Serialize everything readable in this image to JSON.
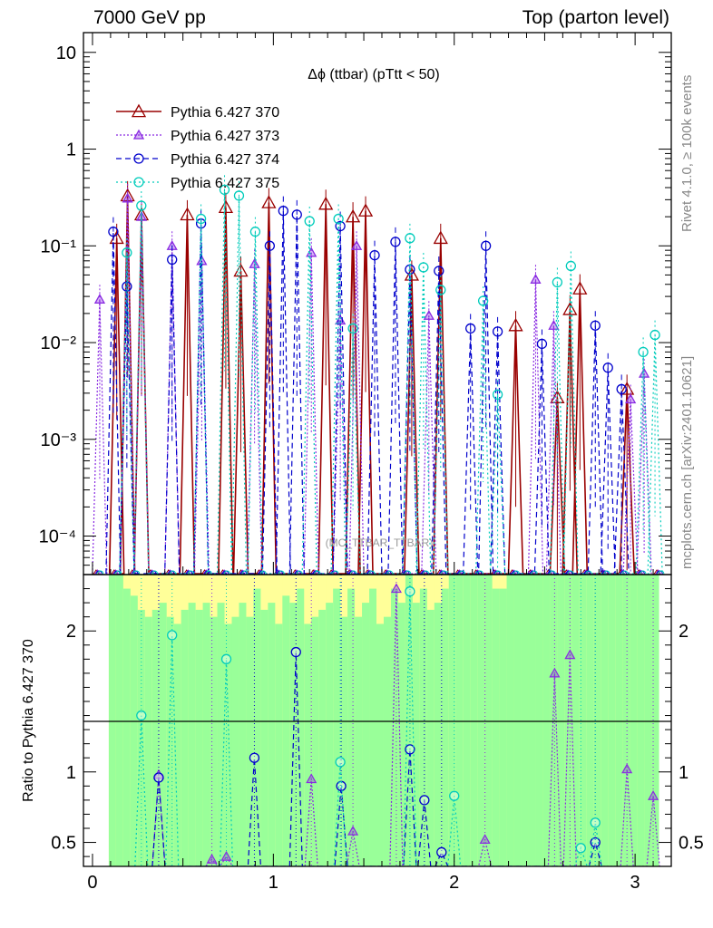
{
  "header": {
    "left": "7000 GeV pp",
    "right": "Top (parton level)"
  },
  "side_labels": {
    "rivet": "Rivet 4.1.0, ≥ 100k events",
    "mcplots": "mcplots.cern.ch [arXiv:2401.10621]"
  },
  "colors": {
    "s370": "#990000",
    "s373": "#8a2be2",
    "s374": "#0000cc",
    "s375": "#00ccbb",
    "band_green": "#99ff99",
    "band_yellow": "#ffff99"
  },
  "chart_data": {
    "type": "line",
    "title": "Δϕ (ttbar) (pTtt < 50)",
    "watermark": "(MC_TTBAR_TTBAR)",
    "xlabel": "",
    "ylabel_ratio": "Ratio to Pythia 6.427 370",
    "xlim": [
      -0.05,
      3.2
    ],
    "ylim": [
      4e-05,
      16
    ],
    "ratio_ylim": [
      0.33,
      2.4
    ],
    "x_ticks": [
      "0",
      "1",
      "2",
      "3"
    ],
    "y_ticks": [
      "10",
      "1",
      "10⁻¹",
      "10⁻²",
      "10⁻³",
      "10⁻⁴"
    ],
    "ratio_ticks": [
      "0.5",
      "1",
      "2"
    ],
    "legend": [
      "Pythia 6.427 370",
      "Pythia 6.427 373",
      "Pythia 6.427 374",
      "Pythia 6.427 375"
    ],
    "series": [
      {
        "name": "Pythia 6.427 370",
        "marker": "triangle",
        "x": [
          0.134,
          0.194,
          0.271,
          0.524,
          0.737,
          0.82,
          0.975,
          1.29,
          1.44,
          1.51,
          1.765,
          1.925,
          2.34,
          2.57,
          2.64,
          2.695,
          2.955
        ],
        "y": [
          0.12,
          0.33,
          0.21,
          0.21,
          0.25,
          0.055,
          0.28,
          0.27,
          0.2,
          0.23,
          0.05,
          0.12,
          0.015,
          0.0027,
          0.022,
          0.036,
          0.0033
        ]
      },
      {
        "name": "Pythia 6.427 373",
        "marker": "triangle-small",
        "x": [
          0.04,
          0.194,
          0.271,
          0.44,
          0.604,
          0.896,
          1.21,
          1.37,
          1.46,
          1.86,
          2.45,
          2.55,
          2.975,
          3.05
        ],
        "y": [
          0.028,
          0.31,
          0.2,
          0.1,
          0.07,
          0.065,
          0.085,
          0.017,
          0.1,
          0.019,
          0.045,
          0.015,
          0.0026,
          0.0048
        ]
      },
      {
        "name": "Pythia 6.427 374",
        "marker": "circle",
        "x": [
          0.115,
          0.19,
          0.44,
          0.6,
          0.98,
          1.055,
          1.13,
          1.37,
          1.56,
          1.675,
          1.755,
          1.915,
          2.09,
          2.175,
          2.24,
          2.485,
          2.78,
          2.85,
          2.925
        ],
        "y": [
          0.14,
          0.038,
          0.072,
          0.17,
          0.1,
          0.23,
          0.21,
          0.16,
          0.08,
          0.11,
          0.057,
          0.055,
          0.014,
          0.1,
          0.013,
          0.0097,
          0.015,
          0.0055,
          0.0033
        ]
      },
      {
        "name": "Pythia 6.427 375",
        "marker": "circle-open",
        "x": [
          0.19,
          0.27,
          0.6,
          0.73,
          0.81,
          0.9,
          1.2,
          1.36,
          1.44,
          1.755,
          1.83,
          1.925,
          2.16,
          2.24,
          2.57,
          2.645,
          3.045,
          3.11
        ],
        "y": [
          0.085,
          0.26,
          0.19,
          0.38,
          0.33,
          0.14,
          0.18,
          0.19,
          0.014,
          0.12,
          0.06,
          0.035,
          0.027,
          0.0029,
          0.042,
          0.062,
          0.008,
          0.012
        ]
      }
    ],
    "ratio_series": [
      {
        "name": "Pythia 6.427 373",
        "x": [
          0.366,
          0.66,
          0.74,
          1.21,
          1.44,
          1.68,
          2.17,
          2.555,
          2.64,
          2.955,
          3.1
        ],
        "y": [
          0.98,
          0.38,
          0.4,
          0.95,
          0.58,
          2.3,
          0.52,
          1.7,
          1.83,
          1.02,
          0.83
        ]
      },
      {
        "name": "Pythia 6.427 374",
        "x": [
          0.366,
          0.895,
          1.125,
          1.375,
          1.755,
          1.835,
          1.93,
          2.78
        ],
        "y": [
          0.96,
          1.1,
          1.85,
          0.9,
          1.16,
          0.8,
          0.43,
          0.5
        ]
      },
      {
        "name": "Pythia 6.427 375",
        "x": [
          0.27,
          0.44,
          0.74,
          1.37,
          1.755,
          2.0,
          2.7,
          2.78
        ],
        "y": [
          1.4,
          1.97,
          1.8,
          1.07,
          2.28,
          0.83,
          0.46,
          0.64
        ]
      }
    ],
    "band_edges": [
      0.09,
      0.13,
      0.17,
      0.21,
      0.25,
      0.29,
      0.33,
      0.37,
      0.41,
      0.45,
      0.49,
      0.53,
      0.57,
      0.61,
      0.65,
      0.69,
      0.73,
      0.77,
      0.81,
      0.85,
      0.89,
      0.93,
      0.97,
      1.01,
      1.05,
      1.09,
      1.13,
      1.17,
      1.21,
      1.25,
      1.29,
      1.33,
      1.37,
      1.41,
      1.45,
      1.49,
      1.53,
      1.57,
      1.61,
      1.65,
      1.69,
      1.73,
      1.77,
      1.81,
      1.85,
      1.89,
      1.93,
      1.97,
      2.01,
      2.05,
      2.09,
      2.13,
      2.17,
      2.21,
      2.25,
      2.29,
      2.33,
      2.37,
      2.41,
      2.45,
      2.49,
      2.53,
      2.57,
      2.61,
      2.65,
      2.69,
      2.73,
      2.77,
      2.81,
      2.85,
      2.89,
      2.93,
      2.97,
      3.01,
      3.05,
      3.09,
      3.13
    ],
    "band_green_top": [
      2.4,
      2.4,
      2.3,
      2.25,
      2.15,
      2.1,
      2.15,
      2.2,
      2.1,
      2.05,
      2.15,
      2.2,
      2.15,
      2.2,
      2.1,
      2.2,
      2.05,
      2.1,
      2.2,
      2.1,
      2.3,
      2.15,
      2.2,
      2.05,
      2.25,
      2.2,
      2.3,
      2.05,
      2.1,
      2.15,
      2.2,
      2.3,
      2.1,
      2.3,
      2.1,
      2.2,
      2.3,
      2.05,
      2.1,
      2.3,
      2.2,
      2.4,
      2.2,
      2.3,
      2.15,
      2.2,
      2.3,
      2.4,
      2.4,
      2.4,
      2.4,
      2.4,
      2.4,
      2.3,
      2.3,
      2.4,
      2.4,
      2.4,
      2.4,
      2.4,
      2.4,
      2.4,
      2.4,
      2.4,
      2.4,
      2.4,
      2.4,
      2.4,
      2.4,
      2.4,
      2.4,
      2.4,
      2.4,
      2.4,
      2.4,
      2.4
    ],
    "band_yellow_top": [
      2.4,
      2.4,
      2.4,
      2.4,
      2.4,
      2.4,
      2.4,
      2.4,
      2.4,
      2.4,
      2.4,
      2.4,
      2.4,
      2.4,
      2.4,
      2.4,
      2.4,
      2.4,
      2.4,
      2.4,
      2.4,
      2.4,
      2.4,
      2.4,
      2.4,
      2.4,
      2.4,
      2.4,
      2.4,
      2.4,
      2.4,
      2.4,
      2.4,
      2.4,
      2.4,
      2.4,
      2.4,
      2.4,
      2.4,
      2.4,
      2.4,
      2.4,
      2.4,
      2.4,
      2.4,
      2.4,
      2.4,
      2.4,
      2.4,
      2.4,
      2.4,
      2.4,
      2.4,
      2.4,
      2.4,
      2.4,
      2.4,
      2.4,
      2.4,
      2.4,
      2.4,
      2.4,
      2.4,
      2.4,
      2.4,
      2.4,
      2.4,
      2.4,
      2.4,
      2.4,
      2.4,
      2.4,
      2.4,
      2.4,
      2.4,
      2.4
    ]
  }
}
